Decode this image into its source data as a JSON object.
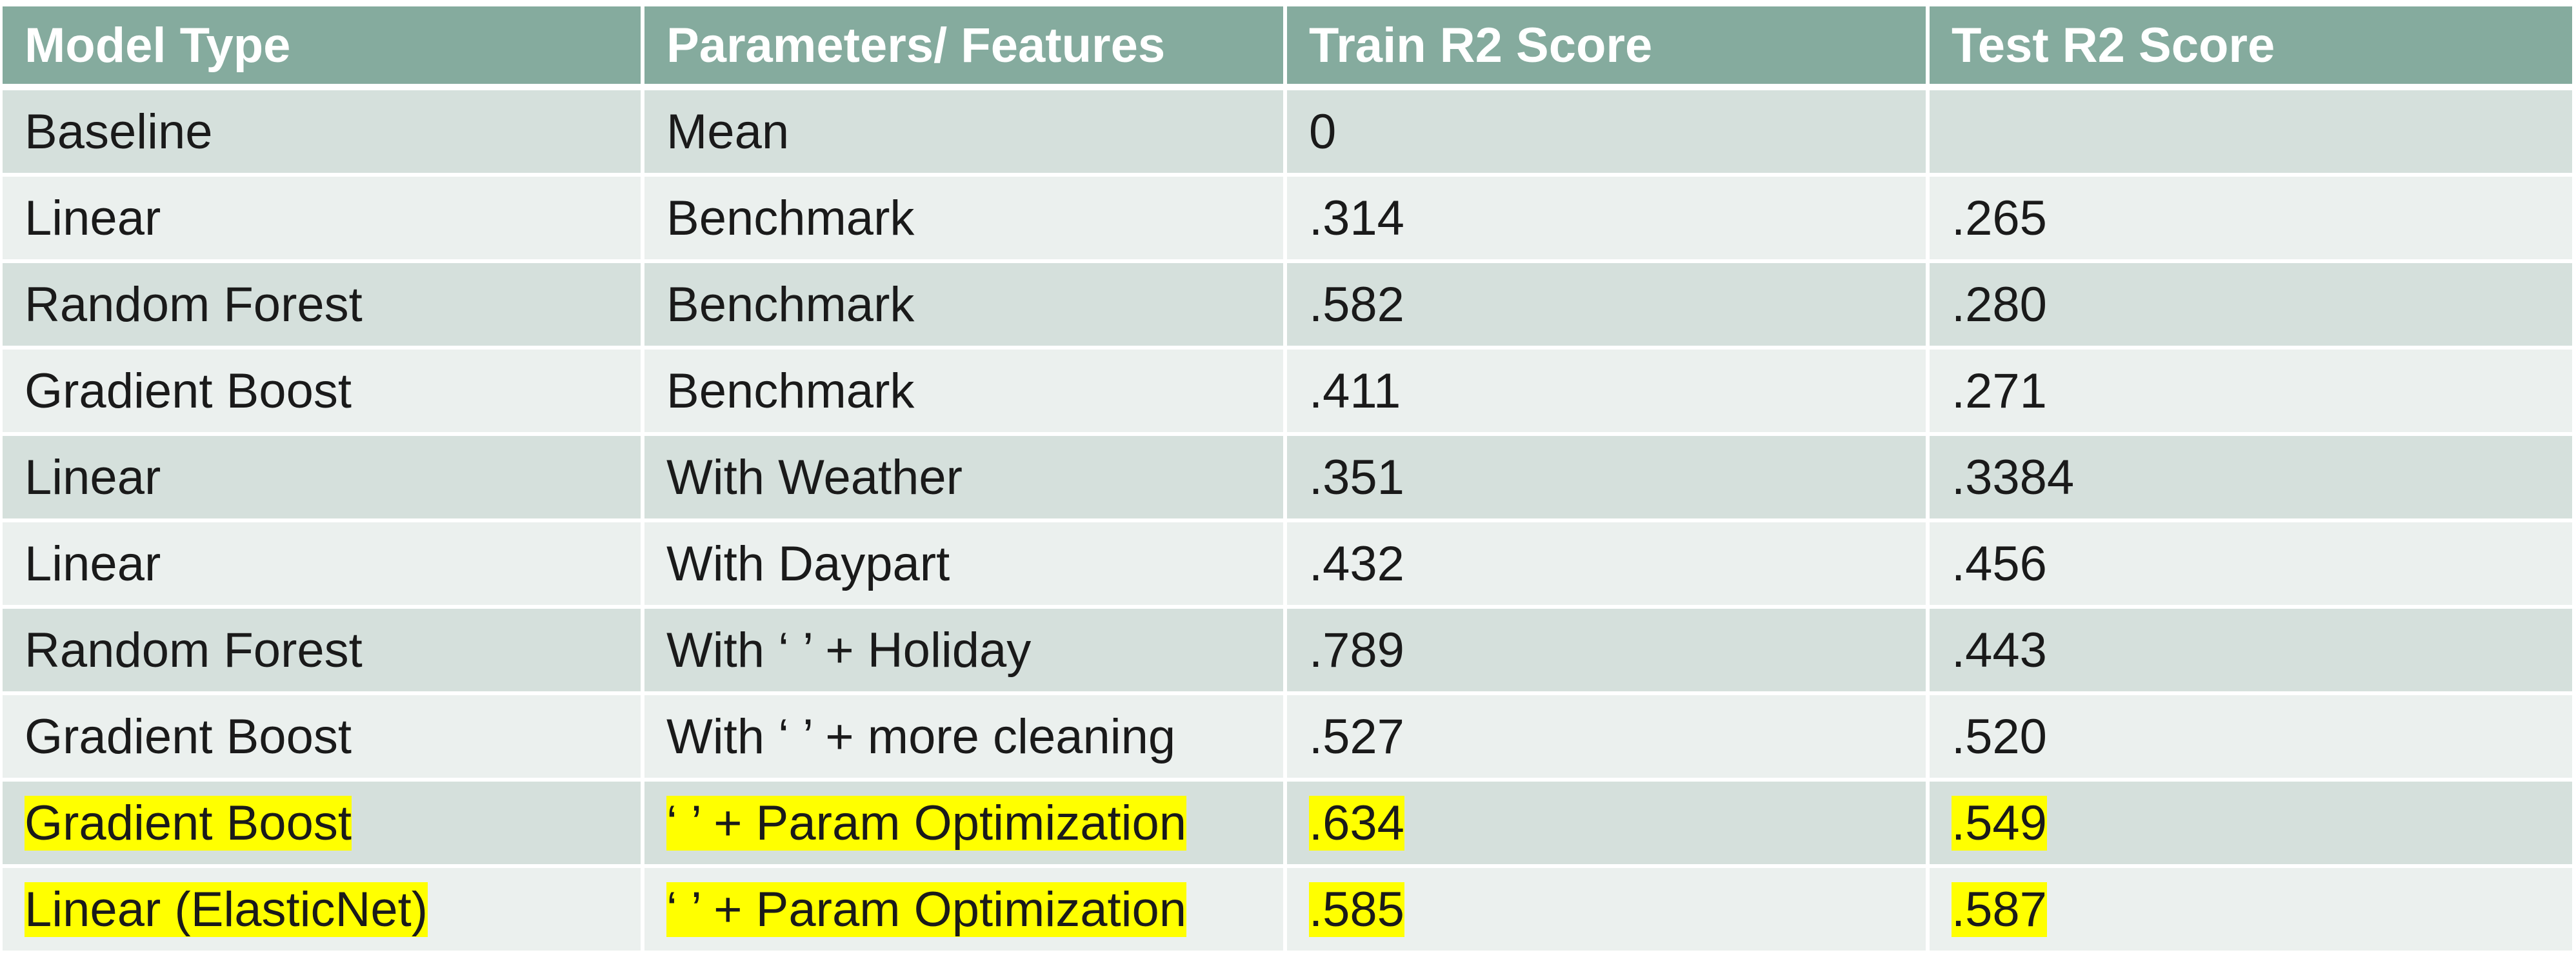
{
  "table": {
    "columns": [
      "Model Type",
      "Parameters/ Features",
      "Train R2 Score",
      "Test R2 Score"
    ],
    "rows": [
      {
        "model": "Baseline",
        "params": "Mean",
        "train": "0",
        "test": "",
        "highlight": false
      },
      {
        "model": "Linear",
        "params": "Benchmark",
        "train": ".314",
        "test": ".265",
        "highlight": false
      },
      {
        "model": "Random Forest",
        "params": "Benchmark",
        "train": ".582",
        "test": ".280",
        "highlight": false
      },
      {
        "model": "Gradient Boost",
        "params": "Benchmark",
        "train": ".411",
        "test": ".271",
        "highlight": false
      },
      {
        "model": "Linear",
        "params": "With Weather",
        "train": ".351",
        "test": ".3384",
        "highlight": false
      },
      {
        "model": "Linear",
        "params": "With Daypart",
        "train": ".432",
        "test": ".456",
        "highlight": false
      },
      {
        "model": "Random Forest",
        "params": "With ‘ ’ + Holiday",
        "train": ".789",
        "test": ".443",
        "highlight": false
      },
      {
        "model": "Gradient Boost",
        "params": "With ‘ ’ + more cleaning",
        "train": ".527",
        "test": ".520",
        "highlight": false
      },
      {
        "model": "Gradient Boost",
        "params": "‘ ’ + Param Optimization",
        "train": ".634",
        "test": ".549",
        "highlight": true
      },
      {
        "model": "Linear (ElasticNet)",
        "params": "‘ ’ + Param Optimization",
        "train": ".585",
        "test": ".587",
        "highlight": true
      }
    ]
  },
  "colors": {
    "header_bg": "#85ab9e",
    "row_odd_bg": "#d5e0dc",
    "row_even_bg": "#ebf0ee",
    "highlight": "#ffff00"
  }
}
